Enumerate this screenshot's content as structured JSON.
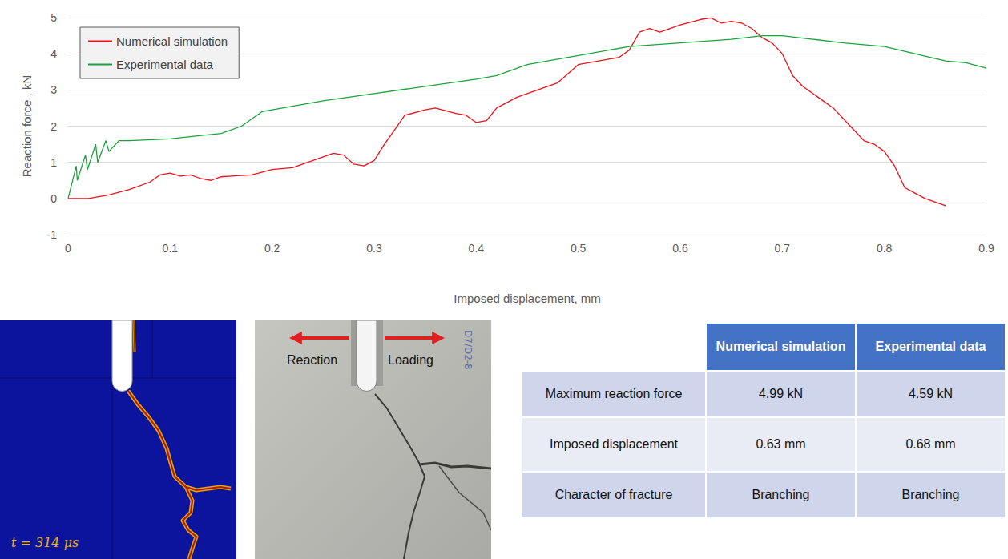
{
  "chart_data": {
    "type": "line",
    "x_label": "Imposed displacement, mm",
    "y_label": "Reaction force , kN",
    "xlim": [
      0,
      0.9
    ],
    "xticks": [
      0,
      0.1,
      0.2,
      0.3,
      0.4,
      0.5,
      0.6,
      0.7,
      0.8,
      0.9
    ],
    "ylim": [
      -1,
      5
    ],
    "yticks": [
      -1,
      0,
      1,
      2,
      3,
      4,
      5
    ],
    "grid": true,
    "legend": "upper left",
    "marker": "none",
    "line_style": "solid",
    "series": [
      {
        "name": "Numerical simulation",
        "color": "#e8141b",
        "x": [
          0,
          0.02,
          0.04,
          0.06,
          0.08,
          0.09,
          0.1,
          0.11,
          0.12,
          0.13,
          0.14,
          0.15,
          0.16,
          0.18,
          0.2,
          0.22,
          0.24,
          0.26,
          0.27,
          0.28,
          0.29,
          0.3,
          0.31,
          0.32,
          0.33,
          0.35,
          0.36,
          0.38,
          0.39,
          0.4,
          0.41,
          0.42,
          0.44,
          0.46,
          0.48,
          0.5,
          0.52,
          0.54,
          0.55,
          0.56,
          0.57,
          0.58,
          0.6,
          0.62,
          0.63,
          0.64,
          0.65,
          0.66,
          0.67,
          0.68,
          0.69,
          0.7,
          0.71,
          0.72,
          0.74,
          0.75,
          0.76,
          0.77,
          0.78,
          0.79,
          0.8,
          0.81,
          0.82,
          0.83,
          0.84,
          0.85,
          0.86
        ],
        "values": [
          0,
          0,
          0.1,
          0.25,
          0.45,
          0.65,
          0.7,
          0.62,
          0.65,
          0.55,
          0.5,
          0.6,
          0.62,
          0.65,
          0.8,
          0.85,
          1.05,
          1.25,
          1.2,
          0.95,
          0.9,
          1.05,
          1.5,
          1.9,
          2.3,
          2.45,
          2.5,
          2.35,
          2.3,
          2.1,
          2.15,
          2.5,
          2.8,
          3.0,
          3.2,
          3.7,
          3.8,
          3.9,
          4.1,
          4.6,
          4.7,
          4.6,
          4.8,
          4.95,
          4.99,
          4.85,
          4.9,
          4.85,
          4.7,
          4.45,
          4.3,
          4.0,
          3.4,
          3.1,
          2.7,
          2.5,
          2.2,
          1.9,
          1.6,
          1.5,
          1.3,
          0.9,
          0.3,
          0.15,
          0.0,
          -0.1,
          -0.2
        ]
      },
      {
        "name": "Experimental data",
        "color": "#1aa33c",
        "x": [
          0,
          0.008,
          0.009,
          0.017,
          0.019,
          0.027,
          0.029,
          0.037,
          0.04,
          0.05,
          0.06,
          0.1,
          0.15,
          0.17,
          0.19,
          0.2,
          0.25,
          0.3,
          0.35,
          0.4,
          0.42,
          0.45,
          0.5,
          0.55,
          0.6,
          0.65,
          0.68,
          0.7,
          0.73,
          0.76,
          0.8,
          0.83,
          0.86,
          0.88,
          0.9
        ],
        "values": [
          0,
          0.9,
          0.5,
          1.2,
          0.8,
          1.5,
          1.0,
          1.6,
          1.3,
          1.6,
          1.6,
          1.65,
          1.8,
          2.0,
          2.4,
          2.45,
          2.7,
          2.9,
          3.1,
          3.3,
          3.4,
          3.7,
          3.95,
          4.2,
          4.3,
          4.4,
          4.5,
          4.5,
          4.4,
          4.3,
          4.2,
          4.0,
          3.8,
          3.75,
          3.6
        ]
      }
    ]
  },
  "simulation_panel": {
    "time_label": "t = 314 μs"
  },
  "photo_panel": {
    "labels": [
      "Reaction",
      "Loading"
    ],
    "specimen_mark": "D7/D2-8"
  },
  "table": {
    "columns": [
      "Numerical simulation",
      "Experimental data"
    ],
    "rows": [
      {
        "label": "Maximum reaction force",
        "cells": [
          "4.99 kN",
          "4.59 kN"
        ]
      },
      {
        "label": "Imposed displacement",
        "cells": [
          "0.63 mm",
          "0.68 mm"
        ]
      },
      {
        "label": "Character of fracture",
        "cells": [
          "Branching",
          "Branching"
        ]
      }
    ]
  }
}
